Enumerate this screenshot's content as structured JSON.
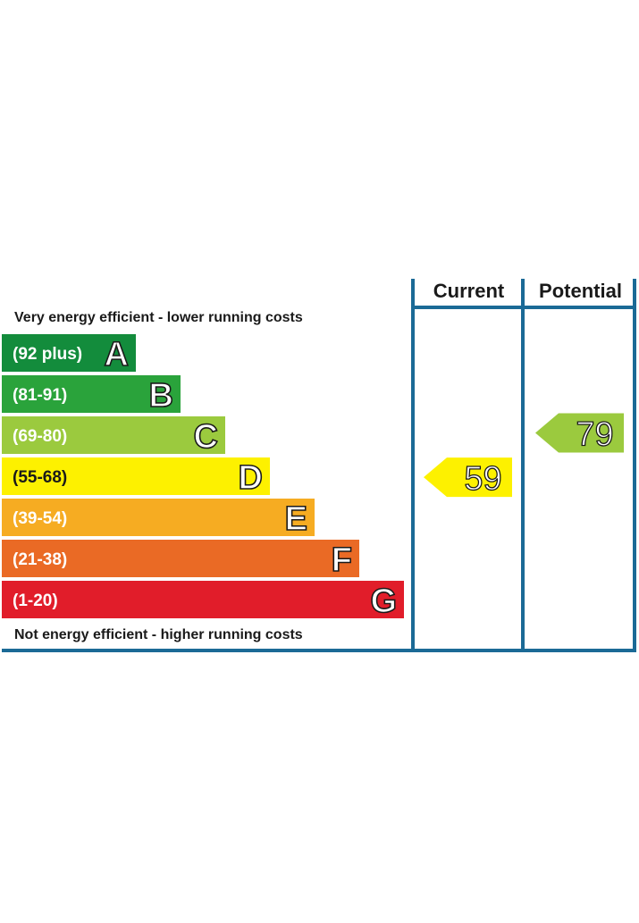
{
  "chart_data": {
    "type": "bar",
    "top_caption": "Very energy efficient - lower running costs",
    "bottom_caption": "Not energy efficient - higher running costs",
    "bands": [
      {
        "letter": "A",
        "range": "(92 plus)",
        "min": 92,
        "max": 100,
        "color": "#138c3c"
      },
      {
        "letter": "B",
        "range": "(81-91)",
        "min": 81,
        "max": 91,
        "color": "#2aa33b"
      },
      {
        "letter": "C",
        "range": "(69-80)",
        "min": 69,
        "max": 80,
        "color": "#9bca3e"
      },
      {
        "letter": "D",
        "range": "(55-68)",
        "min": 55,
        "max": 68,
        "color": "#fdf100"
      },
      {
        "letter": "E",
        "range": "(39-54)",
        "min": 39,
        "max": 54,
        "color": "#f6ac22"
      },
      {
        "letter": "F",
        "range": "(21-38)",
        "min": 21,
        "max": 38,
        "color": "#ea6a25"
      },
      {
        "letter": "G",
        "range": "(1-20)",
        "min": 1,
        "max": 20,
        "color": "#e11d2a"
      }
    ],
    "columns": [
      {
        "header": "Current",
        "value": 59,
        "band": "D"
      },
      {
        "header": "Potential",
        "value": 79,
        "band": "C"
      }
    ],
    "frame_color": "#1b6a96"
  }
}
